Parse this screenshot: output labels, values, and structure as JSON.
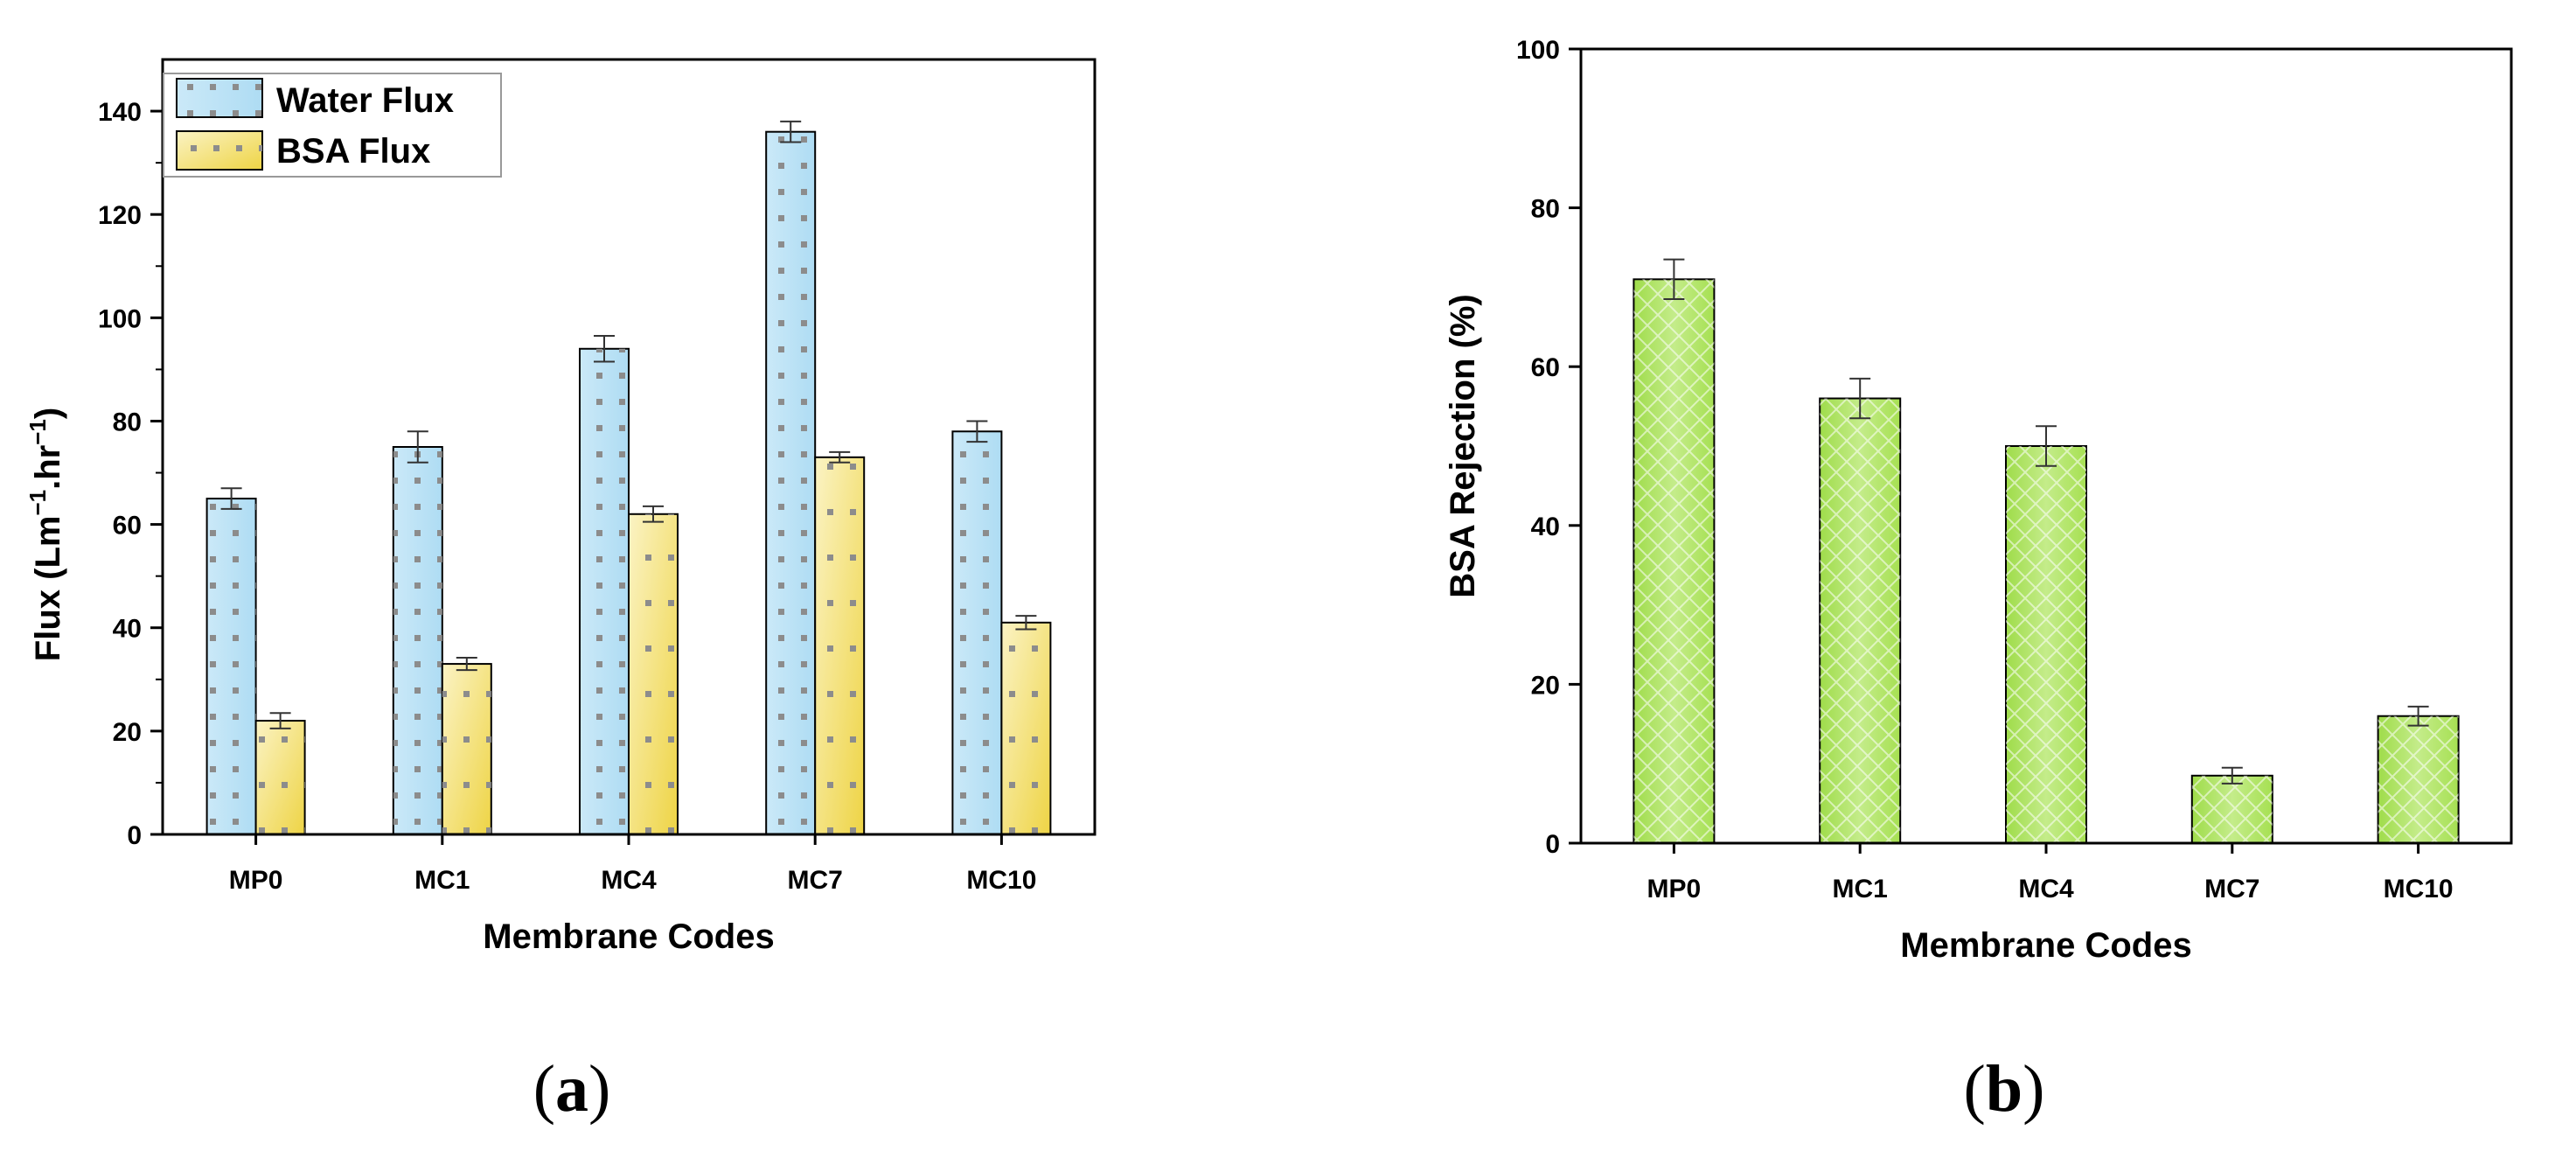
{
  "chart_data": [
    {
      "type": "bar",
      "panel_label": "a",
      "title": "",
      "xlabel": "Membrane Codes",
      "ylabel_main": "Flux (Lm",
      "ylabel_sup1": "−1",
      "ylabel_mid": ".hr",
      "ylabel_sup2": "−1",
      "ylabel_end": ")",
      "ylim": [
        0,
        150
      ],
      "yticks": [
        0,
        20,
        40,
        60,
        80,
        100,
        120,
        140
      ],
      "categories": [
        "MP0",
        "MC1",
        "MC4",
        "MC7",
        "MC10"
      ],
      "legend_position": "top-left",
      "series": [
        {
          "name": "Water Flux",
          "values": [
            65,
            75,
            94,
            136,
            78
          ],
          "errors": [
            2,
            3,
            2.5,
            2,
            2
          ],
          "color": "#bfe4f6",
          "dot_color": "#8c8c8c"
        },
        {
          "name": "BSA Flux",
          "values": [
            22,
            33,
            62,
            73,
            41
          ],
          "errors": [
            1.5,
            1.2,
            1.5,
            1,
            1.3
          ],
          "color": "#f2de6e",
          "dot_color": "#8c8c8c"
        }
      ]
    },
    {
      "type": "bar",
      "panel_label": "b",
      "title": "",
      "xlabel": "Membrane Codes",
      "ylabel": "BSA Rejection (%)",
      "ylim": [
        0,
        100
      ],
      "yticks": [
        0,
        20,
        40,
        60,
        80,
        100
      ],
      "categories": [
        "MP0",
        "MC1",
        "MC4",
        "MC7",
        "MC10"
      ],
      "series": [
        {
          "name": "BSA Rejection",
          "values": [
            71,
            56,
            50,
            8.5,
            16
          ],
          "errors": [
            2.5,
            2.5,
            2.5,
            1,
            1.2
          ],
          "color": "#a8e25a"
        }
      ]
    }
  ]
}
